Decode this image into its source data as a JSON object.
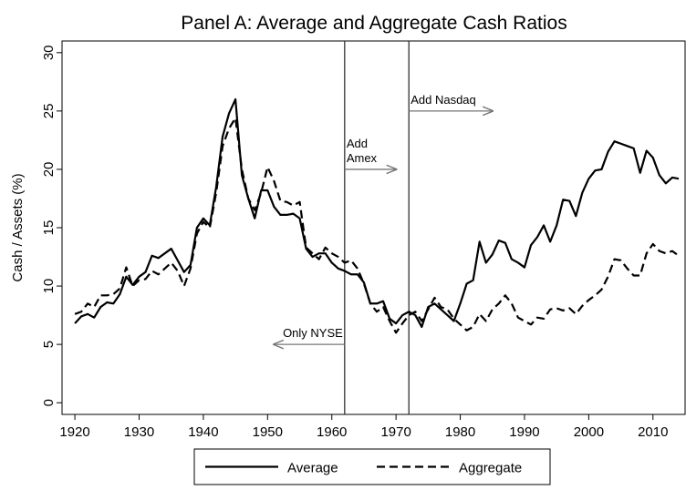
{
  "chart_data": {
    "type": "line",
    "title": "Panel A: Average and Aggregate Cash Ratios",
    "y_label": "Cash / Assets (%)",
    "xlim": [
      1918,
      2015
    ],
    "ylim": [
      -1,
      31
    ],
    "xticks": [
      1920,
      1930,
      1940,
      1950,
      1960,
      1970,
      1980,
      1990,
      2000,
      2010
    ],
    "yticks": [
      0,
      5,
      10,
      15,
      20,
      25,
      30
    ],
    "x": [
      1920,
      1921,
      1922,
      1923,
      1924,
      1925,
      1926,
      1927,
      1928,
      1929,
      1930,
      1931,
      1932,
      1933,
      1934,
      1935,
      1936,
      1937,
      1938,
      1939,
      1940,
      1941,
      1942,
      1943,
      1944,
      1945,
      1946,
      1947,
      1948,
      1949,
      1950,
      1951,
      1952,
      1953,
      1954,
      1955,
      1956,
      1957,
      1958,
      1959,
      1960,
      1961,
      1962,
      1963,
      1964,
      1965,
      1966,
      1967,
      1968,
      1969,
      1970,
      1971,
      1972,
      1973,
      1974,
      1975,
      1976,
      1977,
      1978,
      1979,
      1980,
      1981,
      1982,
      1983,
      1984,
      1985,
      1986,
      1987,
      1988,
      1989,
      1990,
      1991,
      1992,
      1993,
      1994,
      1995,
      1996,
      1997,
      1998,
      1999,
      2000,
      2001,
      2002,
      2003,
      2004,
      2005,
      2006,
      2007,
      2008,
      2009,
      2010,
      2011,
      2012,
      2013,
      2014
    ],
    "series": [
      {
        "name": "Average",
        "color": "#000000",
        "dash": "solid",
        "values": [
          6.8,
          7.4,
          7.6,
          7.3,
          8.2,
          8.6,
          8.5,
          9.3,
          10.8,
          10.1,
          10.8,
          11.2,
          12.6,
          12.4,
          12.8,
          13.2,
          12.2,
          11.2,
          11.8,
          15.0,
          15.8,
          15.2,
          18.5,
          22.8,
          24.8,
          26.0,
          19.5,
          17.5,
          15.8,
          18.2,
          18.2,
          16.8,
          16.1,
          16.1,
          16.2,
          15.8,
          13.2,
          12.5,
          12.8,
          12.8,
          12.0,
          11.5,
          11.3,
          11.0,
          11.0,
          10.3,
          8.5,
          8.5,
          8.7,
          7.2,
          6.8,
          7.5,
          7.8,
          7.5,
          6.5,
          8.2,
          8.5,
          8.0,
          7.5,
          7.0,
          8.5,
          10.2,
          10.5,
          13.8,
          12.0,
          12.7,
          13.9,
          13.7,
          12.3,
          12.0,
          11.6,
          13.5,
          14.2,
          15.2,
          13.8,
          15.2,
          17.4,
          17.3,
          16.0,
          18.0,
          19.2,
          19.9,
          20.0,
          21.5,
          22.4,
          22.2,
          22.0,
          21.8,
          19.7,
          21.6,
          21.0,
          19.5,
          18.8,
          19.3,
          19.2
        ]
      },
      {
        "name": "Aggregate",
        "color": "#000000",
        "dash": "dashed",
        "values": [
          7.6,
          7.8,
          8.5,
          8.2,
          9.2,
          9.2,
          9.3,
          9.8,
          11.6,
          10.0,
          10.5,
          10.6,
          11.3,
          11.0,
          11.5,
          12.0,
          11.3,
          10.0,
          11.5,
          14.5,
          15.5,
          15.0,
          18.0,
          22.0,
          23.5,
          24.4,
          20.0,
          17.5,
          16.5,
          18.0,
          20.2,
          19.0,
          17.3,
          17.2,
          16.9,
          17.2,
          13.3,
          12.8,
          12.3,
          13.3,
          12.8,
          12.5,
          12.0,
          12.2,
          11.5,
          10.2,
          8.5,
          7.8,
          8.2,
          7.0,
          6.0,
          6.8,
          7.5,
          7.8,
          7.0,
          8.0,
          9.0,
          8.2,
          8.0,
          7.2,
          6.7,
          6.2,
          6.5,
          7.6,
          7.0,
          8.0,
          8.5,
          9.2,
          8.5,
          7.3,
          7.0,
          6.7,
          7.3,
          7.2,
          8.0,
          8.1,
          7.9,
          8.1,
          7.6,
          8.3,
          8.8,
          9.2,
          9.7,
          10.8,
          12.3,
          12.2,
          11.5,
          10.9,
          10.9,
          12.8,
          13.6,
          13.0,
          12.8,
          13.0,
          12.6
        ]
      }
    ],
    "vlines": [
      1962,
      1972
    ],
    "annotations": [
      {
        "text": [
          "Add",
          "Amex"
        ],
        "x": 1962,
        "x_end": 1970,
        "y": 20
      },
      {
        "text": [
          "Add Nasdaq"
        ],
        "x": 1972,
        "x_end": 1985,
        "y": 25
      },
      {
        "text": [
          "Only NYSE"
        ],
        "x": 1962,
        "x_end": 1951,
        "y": 5
      }
    ],
    "legend": "bottom"
  }
}
